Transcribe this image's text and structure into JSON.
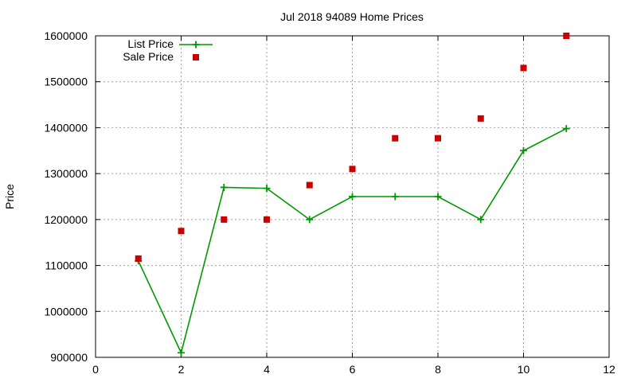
{
  "chart_data": {
    "type": "line",
    "title": "Jul 2018 94089 Home Prices",
    "xlabel": "",
    "ylabel": "Price",
    "xlim": [
      0,
      12
    ],
    "ylim": [
      900000,
      1600000
    ],
    "x_ticks": [
      0,
      2,
      4,
      6,
      8,
      10,
      12
    ],
    "y_ticks": [
      900000,
      1000000,
      1100000,
      1200000,
      1300000,
      1400000,
      1500000,
      1600000
    ],
    "grid": true,
    "legend_position": "top-left",
    "series": [
      {
        "name": "List Price",
        "style": "line+plus",
        "color": "#009900",
        "x": [
          1,
          2,
          3,
          4,
          5,
          6,
          7,
          8,
          9,
          10,
          11
        ],
        "y": [
          1110000,
          910000,
          1270000,
          1268000,
          1200000,
          1250000,
          1250000,
          1250000,
          1200000,
          1350000,
          1398000
        ]
      },
      {
        "name": "Sale Price",
        "style": "square-points",
        "color": "#c80000",
        "x": [
          1,
          2,
          3,
          4,
          5,
          6,
          7,
          8,
          9,
          10,
          11
        ],
        "y": [
          1115000,
          1175000,
          1200000,
          1200000,
          1275000,
          1310000,
          1377000,
          1377000,
          1420000,
          1530000,
          1600000
        ]
      }
    ]
  }
}
